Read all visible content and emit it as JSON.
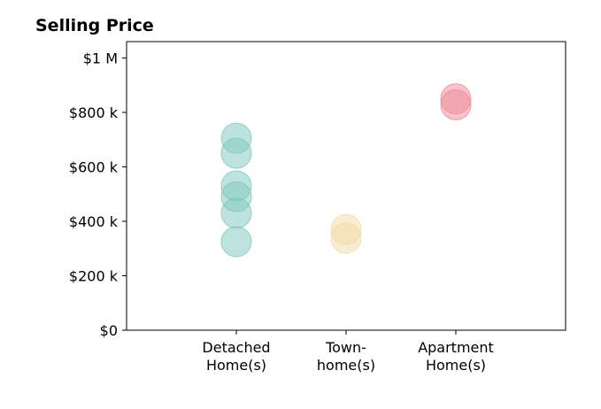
{
  "chart_data": {
    "type": "scatter",
    "title": "Selling Price",
    "xlabel": "",
    "ylabel": "",
    "categories": [
      [
        "Detached",
        "Home(s)"
      ],
      [
        "Town-",
        "home(s)"
      ],
      [
        "Apartment",
        "Home(s)"
      ]
    ],
    "y_ticks": [
      {
        "value": 0,
        "label": "$0"
      },
      {
        "value": 200000,
        "label": "$200 k"
      },
      {
        "value": 400000,
        "label": "$400 k"
      },
      {
        "value": 600000,
        "label": "$600 k"
      },
      {
        "value": 800000,
        "label": "$800 k"
      },
      {
        "value": 1000000,
        "label": "$1 M"
      }
    ],
    "xlim": [
      -1,
      3
    ],
    "ylim": [
      0,
      1060000
    ],
    "grid": false,
    "series": [
      {
        "category_index": 0,
        "color": "#7ec7bd",
        "values": [
          705000,
          650000,
          530000,
          490000,
          430000,
          325000
        ]
      },
      {
        "category_index": 1,
        "color": "#f1d9a7",
        "values": [
          370000,
          338000
        ]
      },
      {
        "category_index": 2,
        "color": "#ee8a96",
        "values": [
          850000,
          828000
        ]
      }
    ]
  }
}
